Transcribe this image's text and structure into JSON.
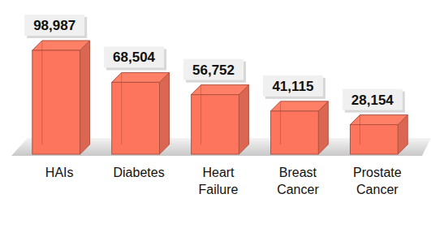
{
  "chart_data": {
    "type": "bar",
    "categories": [
      "HAIs",
      "Diabetes",
      "Heart Failure",
      "Breast Cancer",
      "Prostate Cancer"
    ],
    "values": [
      98987,
      68504,
      56752,
      41115,
      28154
    ],
    "value_labels": [
      "98,987",
      "68,504",
      "56,752",
      "41,115",
      "28,154"
    ],
    "color": "#f4715a",
    "data_labels": true,
    "tick_labels": false,
    "grid": false
  }
}
